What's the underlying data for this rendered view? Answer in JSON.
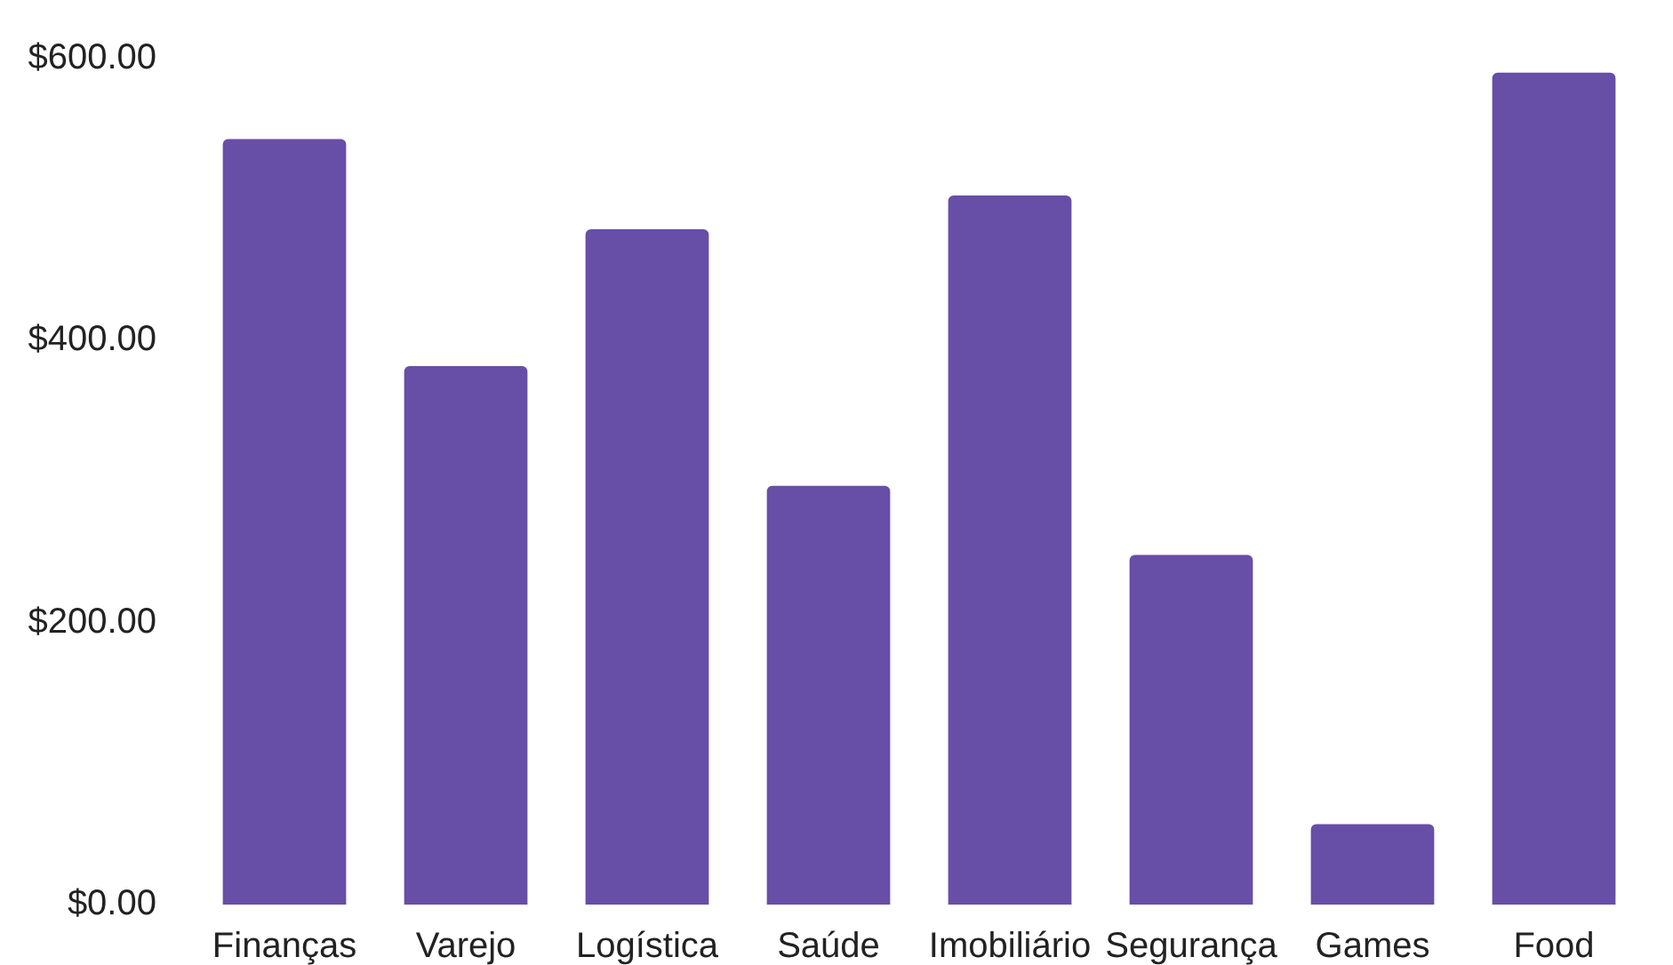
{
  "chart_data": {
    "type": "bar",
    "categories": [
      "Finanças",
      "Varejo",
      "Logística",
      "Saúde",
      "Imobiliário",
      "Segurança",
      "Games",
      "Food"
    ],
    "values": [
      543,
      382,
      479,
      297,
      503,
      248,
      57,
      590
    ],
    "color": "#674ea7",
    "ylim": [
      0,
      600
    ],
    "yticks": [
      {
        "value": 0,
        "label": "$0.00"
      },
      {
        "value": 200,
        "label": "$200.00"
      },
      {
        "value": 400,
        "label": "$400.00"
      },
      {
        "value": 600,
        "label": "$600.00"
      }
    ]
  }
}
